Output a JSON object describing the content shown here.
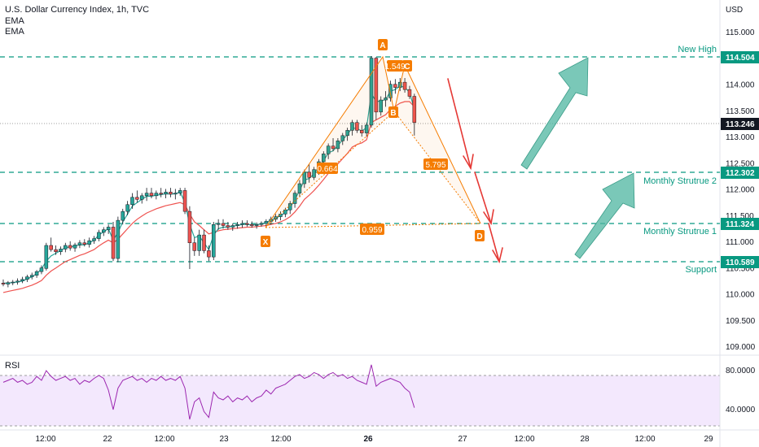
{
  "header": {
    "title": "U.S. Dollar Currency Index, 1h, TVC",
    "indicator1": "EMA",
    "indicator2": "EMA"
  },
  "price_axis": {
    "currency": "USD",
    "ticks": [
      "115.000",
      "114.500",
      "114.000",
      "113.500",
      "113.000",
      "112.500",
      "112.000",
      "111.500",
      "111.000",
      "110.500",
      "110.000",
      "109.500",
      "109.000"
    ],
    "current_price": "113.246"
  },
  "time_axis": {
    "ticks": [
      "12:00",
      "22",
      "12:00",
      "23",
      "12:00",
      "26",
      "27",
      "12:00",
      "28",
      "12:00",
      "29"
    ]
  },
  "levels": [
    {
      "name": "New High",
      "price_label": "114.504"
    },
    {
      "name": "Monthly Strutrue 2",
      "price_label": "112.302"
    },
    {
      "name": "Monthly Strutrue 1",
      "price_label": "111.324"
    },
    {
      "name": "Support",
      "price_label": "110.589"
    }
  ],
  "pattern": {
    "points": [
      "X",
      "A",
      "B",
      "C",
      "D"
    ],
    "ratios": [
      "1.549",
      "0.664",
      "5.795",
      "0.959"
    ]
  },
  "rsi": {
    "label": "RSI",
    "ticks": [
      "80.0000",
      "40.0000"
    ]
  },
  "colors": {
    "up": "#26a69a",
    "down": "#ef5350",
    "level": "#089981",
    "pattern": "#f57c00",
    "arrow_up": "#4db6a0",
    "arrow_down": "#e53935",
    "rsi_line": "#9c27b0",
    "rsi_band": "#f3e8fd"
  },
  "chart_data": [
    {
      "type": "candlestick",
      "title": "U.S. Dollar Currency Index, 1h, TVC",
      "ylim": [
        108.9,
        115.25
      ],
      "levels": [
        114.504,
        112.302,
        111.324,
        110.589
      ],
      "current_price": 113.246,
      "candles": [
        [
          110.18,
          110.25,
          110.12,
          110.16
        ],
        [
          110.16,
          110.22,
          110.1,
          110.19
        ],
        [
          110.19,
          110.24,
          110.14,
          110.2
        ],
        [
          110.2,
          110.27,
          110.15,
          110.22
        ],
        [
          110.22,
          110.3,
          110.18,
          110.25
        ],
        [
          110.25,
          110.34,
          110.2,
          110.3
        ],
        [
          110.3,
          110.38,
          110.25,
          110.33
        ],
        [
          110.33,
          110.43,
          110.28,
          110.4
        ],
        [
          110.4,
          110.52,
          110.35,
          110.47
        ],
        [
          110.46,
          110.95,
          110.42,
          110.9
        ],
        [
          110.9,
          111.05,
          110.78,
          110.82
        ],
        [
          110.82,
          110.9,
          110.72,
          110.78
        ],
        [
          110.78,
          110.88,
          110.72,
          110.83
        ],
        [
          110.83,
          110.95,
          110.77,
          110.9
        ],
        [
          110.9,
          110.98,
          110.8,
          110.85
        ],
        [
          110.85,
          110.95,
          110.78,
          110.91
        ],
        [
          110.91,
          111.0,
          110.85,
          110.95
        ],
        [
          110.95,
          111.02,
          110.88,
          110.92
        ],
        [
          110.92,
          111.05,
          110.86,
          110.99
        ],
        [
          110.99,
          111.08,
          110.93,
          111.03
        ],
        [
          111.03,
          111.2,
          110.98,
          111.15
        ],
        [
          111.15,
          111.25,
          111.08,
          111.2
        ],
        [
          111.2,
          111.3,
          111.12,
          111.25
        ],
        [
          111.25,
          111.35,
          110.6,
          110.65
        ],
        [
          110.65,
          111.45,
          110.58,
          111.38
        ],
        [
          111.38,
          111.6,
          111.3,
          111.55
        ],
        [
          111.55,
          111.75,
          111.48,
          111.68
        ],
        [
          111.68,
          111.9,
          111.6,
          111.82
        ],
        [
          111.82,
          111.95,
          111.72,
          111.78
        ],
        [
          111.78,
          111.9,
          111.7,
          111.85
        ],
        [
          111.85,
          112.0,
          111.75,
          111.9
        ],
        [
          111.9,
          112.0,
          111.8,
          111.85
        ],
        [
          111.85,
          111.95,
          111.78,
          111.9
        ],
        [
          111.9,
          112.0,
          111.82,
          111.88
        ],
        [
          111.88,
          111.98,
          111.8,
          111.92
        ],
        [
          111.92,
          112.0,
          111.82,
          111.88
        ],
        [
          111.88,
          111.98,
          111.78,
          111.9
        ],
        [
          111.9,
          112.0,
          111.85,
          111.95
        ],
        [
          111.95,
          112.0,
          111.5,
          111.55
        ],
        [
          111.55,
          111.65,
          110.45,
          110.95
        ],
        [
          110.95,
          111.05,
          110.7,
          110.8
        ],
        [
          110.8,
          111.2,
          110.7,
          111.1
        ],
        [
          111.1,
          111.2,
          110.75,
          110.8
        ],
        [
          110.8,
          110.9,
          110.6,
          110.68
        ],
        [
          110.68,
          111.35,
          110.62,
          111.3
        ],
        [
          111.3,
          111.4,
          111.2,
          111.32
        ],
        [
          111.32,
          111.4,
          111.22,
          111.28
        ],
        [
          111.28,
          111.35,
          111.2,
          111.25
        ],
        [
          111.25,
          111.32,
          111.18,
          111.28
        ],
        [
          111.28,
          111.35,
          111.22,
          111.3
        ],
        [
          111.3,
          111.38,
          111.24,
          111.32
        ],
        [
          111.32,
          111.38,
          111.26,
          111.3
        ],
        [
          111.3,
          111.36,
          111.24,
          111.28
        ],
        [
          111.28,
          111.34,
          111.22,
          111.3
        ],
        [
          111.3,
          111.36,
          111.26,
          111.32
        ],
        [
          111.32,
          111.4,
          111.26,
          111.36
        ],
        [
          111.36,
          111.45,
          111.3,
          111.4
        ],
        [
          111.4,
          111.5,
          111.35,
          111.45
        ],
        [
          111.45,
          111.55,
          111.38,
          111.5
        ],
        [
          111.5,
          111.62,
          111.44,
          111.58
        ],
        [
          111.58,
          111.75,
          111.5,
          111.7
        ],
        [
          111.7,
          111.95,
          111.62,
          111.9
        ],
        [
          111.9,
          112.15,
          111.82,
          112.08
        ],
        [
          112.08,
          112.35,
          112.0,
          112.3
        ],
        [
          112.3,
          112.45,
          112.1,
          112.2
        ],
        [
          112.2,
          112.4,
          112.15,
          112.35
        ],
        [
          112.35,
          112.55,
          112.25,
          112.5
        ],
        [
          112.5,
          112.7,
          112.42,
          112.65
        ],
        [
          112.65,
          112.85,
          112.55,
          112.8
        ],
        [
          112.8,
          112.95,
          112.7,
          112.75
        ],
        [
          112.75,
          112.95,
          112.68,
          112.9
        ],
        [
          112.9,
          113.05,
          112.82,
          113.0
        ],
        [
          113.0,
          113.15,
          112.9,
          113.1
        ],
        [
          113.1,
          113.3,
          113.0,
          113.25
        ],
        [
          113.25,
          113.3,
          113.05,
          113.1
        ],
        [
          113.1,
          113.2,
          112.98,
          113.05
        ],
        [
          113.05,
          113.25,
          112.98,
          113.2
        ],
        [
          113.2,
          114.52,
          113.15,
          114.48
        ],
        [
          114.48,
          114.5,
          113.3,
          113.45
        ],
        [
          113.45,
          113.75,
          113.38,
          113.68
        ],
        [
          113.68,
          113.85,
          113.55,
          113.72
        ],
        [
          113.72,
          114.05,
          113.65,
          113.98
        ],
        [
          113.98,
          114.08,
          113.8,
          113.92
        ],
        [
          113.92,
          114.1,
          113.85,
          114.02
        ],
        [
          114.02,
          114.1,
          113.82,
          113.88
        ],
        [
          113.88,
          113.95,
          113.7,
          113.75
        ],
        [
          113.75,
          113.8,
          113.0,
          113.25
        ]
      ],
      "ema_fast": [
        110.18,
        110.18,
        110.19,
        110.2,
        110.22,
        110.26,
        110.3,
        110.36,
        110.45,
        110.6,
        110.7,
        110.75,
        110.8,
        110.86,
        110.87,
        110.89,
        110.91,
        110.91,
        110.95,
        111.0,
        111.1,
        111.16,
        111.22,
        111.0,
        111.15,
        111.35,
        111.5,
        111.65,
        111.72,
        111.78,
        111.84,
        111.84,
        111.86,
        111.87,
        111.89,
        111.88,
        111.89,
        111.92,
        111.72,
        111.3,
        111.05,
        111.08,
        110.95,
        110.82,
        111.1,
        111.22,
        111.25,
        111.25,
        111.27,
        111.28,
        111.3,
        111.3,
        111.29,
        111.3,
        111.31,
        111.34,
        111.38,
        111.42,
        111.47,
        111.53,
        111.62,
        111.78,
        111.95,
        112.15,
        112.18,
        112.27,
        112.4,
        112.52,
        112.67,
        112.71,
        112.81,
        112.92,
        113.02,
        113.15,
        113.13,
        113.09,
        113.15,
        113.8,
        113.65,
        113.66,
        113.69,
        113.85,
        113.88,
        113.95,
        113.92,
        113.83,
        113.5
      ],
      "ema_slow": [
        110.0,
        110.02,
        110.04,
        110.06,
        110.08,
        110.11,
        110.14,
        110.18,
        110.23,
        110.33,
        110.41,
        110.47,
        110.53,
        110.59,
        110.63,
        110.67,
        110.71,
        110.74,
        110.78,
        110.82,
        110.89,
        110.95,
        111.0,
        110.95,
        111.02,
        111.12,
        111.22,
        111.32,
        111.4,
        111.46,
        111.52,
        111.56,
        111.6,
        111.63,
        111.66,
        111.68,
        111.7,
        111.72,
        111.68,
        111.5,
        111.35,
        111.28,
        111.2,
        111.12,
        111.15,
        111.18,
        111.2,
        111.21,
        111.22,
        111.23,
        111.24,
        111.25,
        111.25,
        111.26,
        111.27,
        111.28,
        111.3,
        111.32,
        111.35,
        111.39,
        111.45,
        111.54,
        111.65,
        111.78,
        111.86,
        111.95,
        112.05,
        112.16,
        112.28,
        112.36,
        112.46,
        112.56,
        112.66,
        112.78,
        112.83,
        112.86,
        112.92,
        113.25,
        113.3,
        113.35,
        113.4,
        113.5,
        113.56,
        113.62,
        113.65,
        113.65,
        113.55
      ]
    },
    {
      "type": "line",
      "title": "RSI",
      "ylim": [
        25,
        95
      ],
      "bands": [
        30,
        75
      ],
      "values": [
        68,
        70,
        72,
        68,
        70,
        66,
        68,
        74,
        70,
        80,
        74,
        70,
        72,
        74,
        70,
        72,
        66,
        70,
        68,
        72,
        75,
        72,
        60,
        40,
        62,
        70,
        72,
        74,
        70,
        72,
        68,
        72,
        70,
        74,
        70,
        72,
        70,
        74,
        62,
        30,
        48,
        52,
        38,
        32,
        58,
        52,
        50,
        54,
        48,
        52,
        50,
        54,
        48,
        52,
        54,
        60,
        56,
        62,
        64,
        66,
        70,
        74,
        76,
        72,
        74,
        78,
        76,
        72,
        76,
        78,
        74,
        76,
        72,
        74,
        70,
        68,
        66,
        86,
        64,
        68,
        70,
        72,
        70,
        68,
        62,
        58,
        42
      ]
    }
  ]
}
